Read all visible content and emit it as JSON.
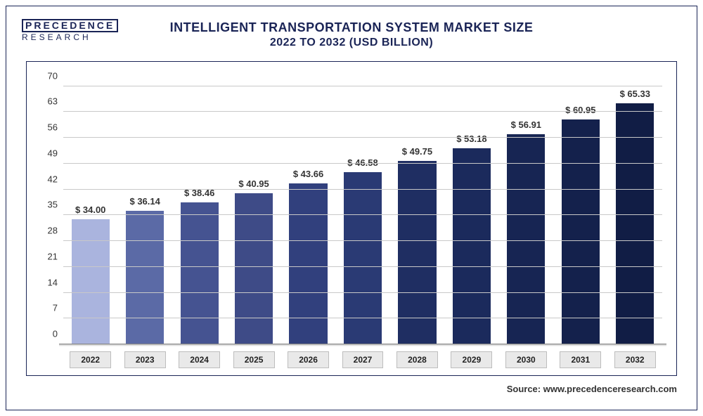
{
  "logo": {
    "top": "PRECEDENCE",
    "bottom": "RESEARCH"
  },
  "title": {
    "line1": "INTELLIGENT TRANSPORTATION SYSTEM MARKET SIZE",
    "line2": "2022 TO 2032 (USD BILLION)"
  },
  "source": "Source: www.precedenceresearch.com",
  "chart": {
    "type": "bar",
    "ylim": [
      0,
      72
    ],
    "yticks": [
      0,
      7,
      14,
      21,
      28,
      35,
      42,
      49,
      56,
      63,
      70
    ],
    "grid_color": "#c8c8c8",
    "background_color": "#ffffff",
    "title_fontsize": 18,
    "label_fontsize": 13,
    "bar_width": 0.7,
    "categories": [
      "2022",
      "2023",
      "2024",
      "2025",
      "2026",
      "2027",
      "2028",
      "2029",
      "2030",
      "2031",
      "2032"
    ],
    "values": [
      34.0,
      36.14,
      38.46,
      40.95,
      43.66,
      46.58,
      49.75,
      53.18,
      56.91,
      60.95,
      65.33
    ],
    "value_labels": [
      "$ 34.00",
      "$ 36.14",
      "$ 38.46",
      "$ 40.95",
      "$ 43.66",
      "$ 46.58",
      "$ 49.75",
      "$ 53.18",
      "$ 56.91",
      "$ 60.95",
      "$ 65.33"
    ],
    "bar_colors": [
      "#aab4de",
      "#5b6aa6",
      "#455391",
      "#3e4b87",
      "#31407d",
      "#2a3a74",
      "#1f2e62",
      "#1b2a5c",
      "#172553",
      "#14214c",
      "#111d45"
    ],
    "xaxis_box_bg": "#e9e9e9",
    "xaxis_box_border": "#bdbdbd"
  }
}
